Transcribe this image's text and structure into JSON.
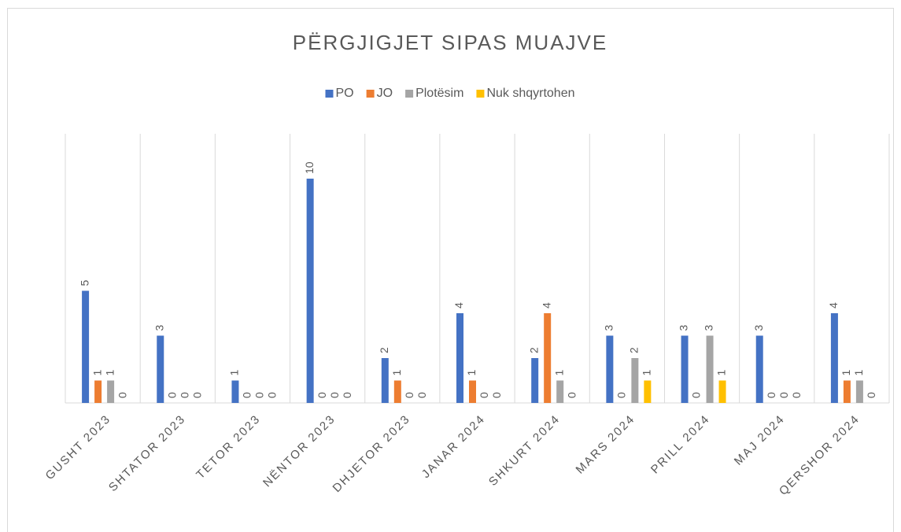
{
  "chart_data": {
    "type": "bar",
    "title": "PËRGJIGJET SIPAS MUAJVE",
    "categories": [
      "GUSHT 2023",
      "SHTATOR 2023",
      "TETOR 2023",
      "NËNTOR 2023",
      "DHJETOR 2023",
      "JANAR 2024",
      "SHKURT 2024",
      "MARS 2024",
      "PRILL 2024",
      "MAJ 2024",
      "QERSHOR 2024"
    ],
    "series": [
      {
        "name": "PO",
        "color": "#4472c4",
        "values": [
          5,
          3,
          1,
          10,
          2,
          4,
          2,
          3,
          3,
          3,
          4
        ]
      },
      {
        "name": "JO",
        "color": "#ed7d31",
        "values": [
          1,
          0,
          0,
          0,
          1,
          1,
          4,
          0,
          0,
          0,
          1
        ]
      },
      {
        "name": "Plotësim",
        "color": "#a5a5a5",
        "values": [
          1,
          0,
          0,
          0,
          0,
          0,
          1,
          2,
          3,
          0,
          1
        ]
      },
      {
        "name": "Nuk shqyrtohen",
        "color": "#ffc000",
        "values": [
          0,
          0,
          0,
          0,
          0,
          0,
          0,
          1,
          1,
          0,
          0
        ]
      }
    ],
    "ylim": [
      0,
      12
    ],
    "legend": "top",
    "grid": "vertical"
  }
}
